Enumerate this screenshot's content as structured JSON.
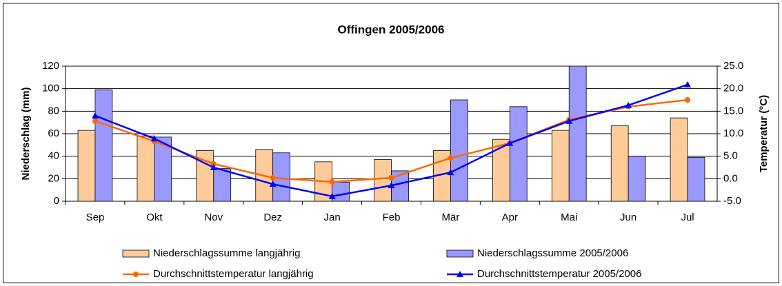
{
  "chart_data": {
    "type": "bar",
    "title": "Offingen 2005/2006",
    "ylabel": "Niederschlag (mm)",
    "y2label": "Temperatur (°C)",
    "categories": [
      "Sep",
      "Okt",
      "Nov",
      "Dez",
      "Jan",
      "Feb",
      "Mär",
      "Apr",
      "Mai",
      "Jun",
      "Jul"
    ],
    "series": [
      {
        "name": "Niederschlagssumme langjährig",
        "type": "bar",
        "color": "#ffcc99",
        "values": [
          63,
          58,
          45,
          46,
          35,
          37,
          45,
          55,
          63,
          67,
          74
        ]
      },
      {
        "name": "Niederschlagssumme 2005/2006",
        "type": "bar",
        "color": "#9999ff",
        "values": [
          99,
          57,
          29,
          43,
          17,
          27,
          90,
          84,
          120,
          40,
          39
        ]
      },
      {
        "name": "Durchschnittstemperatur langjährig",
        "type": "line",
        "marker": "circle",
        "axis": "y2",
        "color": "#ff6600",
        "values": [
          12.8,
          8.3,
          3.3,
          0.2,
          -0.7,
          0.2,
          4.6,
          7.9,
          13.1,
          16.0,
          17.5
        ]
      },
      {
        "name": "Durchschnittstemperatur 2005/2006",
        "type": "line",
        "marker": "triangle",
        "axis": "y2",
        "color": "#0000ff",
        "values": [
          14.0,
          8.9,
          2.5,
          -1.2,
          -3.9,
          -1.5,
          1.4,
          7.9,
          12.8,
          16.3,
          20.9
        ]
      }
    ],
    "ylim": [
      0,
      120
    ],
    "yticks": [
      0,
      20,
      40,
      60,
      80,
      100,
      120
    ],
    "y2lim": [
      -5,
      25
    ],
    "y2ticks": [
      {
        "value": -5,
        "label": "-5.0"
      },
      {
        "value": 0,
        "label": "0.0"
      },
      {
        "value": 5,
        "label": "5.0"
      },
      {
        "value": 10,
        "label": "10.0"
      },
      {
        "value": 15,
        "label": "15.0"
      },
      {
        "value": 20,
        "label": "20.0"
      },
      {
        "value": 25,
        "label": "25.0"
      }
    ],
    "grid": true
  }
}
